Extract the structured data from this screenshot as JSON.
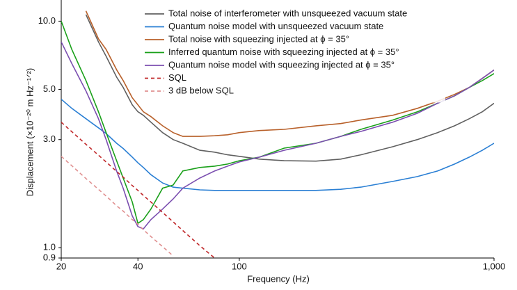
{
  "chart_data": {
    "type": "line",
    "xlabel": "Frequency (Hz)",
    "ylabel": "Displacement (×10⁻²⁰ m Hz⁻¹ᐟ²)",
    "x": [
      20,
      22,
      25,
      28,
      30,
      33,
      35,
      38,
      40,
      42,
      45,
      50,
      55,
      60,
      70,
      80,
      90,
      100,
      120,
      150,
      200,
      250,
      300,
      400,
      500,
      600,
      700,
      800,
      900,
      1000
    ],
    "series": [
      {
        "name": "Total noise of interferometer with unsqueezed vacuum state",
        "color": "#606060",
        "values": [
          null,
          null,
          10.7,
          8.1,
          7.0,
          5.66,
          5.1,
          4.27,
          3.98,
          3.84,
          3.58,
          3.22,
          3.0,
          2.89,
          2.69,
          2.64,
          2.57,
          2.53,
          2.46,
          2.42,
          2.41,
          2.46,
          2.57,
          2.79,
          3.0,
          3.22,
          3.45,
          3.71,
          3.98,
          4.34
        ]
      },
      {
        "name": "Quantum noise model with unsqueezed vacuum state",
        "color": "#2a7fd4",
        "values": [
          4.52,
          4.12,
          3.71,
          3.38,
          3.19,
          2.89,
          2.74,
          2.51,
          2.37,
          2.26,
          2.1,
          1.93,
          1.85,
          1.83,
          1.8,
          1.79,
          1.79,
          1.79,
          1.79,
          1.79,
          1.79,
          1.81,
          1.85,
          1.96,
          2.06,
          2.18,
          2.34,
          2.51,
          2.69,
          2.89
        ]
      },
      {
        "name": "Total noise with squeezing injected at ϕ = 35°",
        "color": "#b8602a",
        "values": [
          null,
          null,
          11.1,
          8.36,
          7.5,
          6.1,
          5.47,
          4.59,
          4.27,
          3.98,
          3.79,
          3.45,
          3.22,
          3.1,
          3.1,
          3.12,
          3.15,
          3.22,
          3.29,
          3.33,
          3.45,
          3.53,
          3.66,
          3.84,
          4.12,
          4.43,
          4.75,
          5.1,
          5.59,
          6.09
        ]
      },
      {
        "name": "Inferred quantum noise with squeezing injected at ϕ = 35°",
        "color": "#1aa01a",
        "values": [
          10.0,
          7.5,
          5.47,
          3.98,
          3.22,
          2.42,
          2.03,
          1.59,
          1.28,
          1.33,
          1.48,
          1.83,
          1.89,
          2.18,
          2.26,
          2.29,
          2.34,
          2.42,
          2.51,
          2.75,
          2.89,
          3.1,
          3.33,
          3.66,
          3.98,
          4.34,
          4.68,
          5.1,
          5.47,
          5.87
        ]
      },
      {
        "name": "Quantum noise model with squeezing injected at ϕ = 35°",
        "color": "#7b4fb0",
        "values": [
          8.1,
          6.5,
          4.92,
          3.71,
          3.0,
          2.18,
          1.83,
          1.38,
          1.24,
          1.21,
          1.33,
          1.48,
          1.64,
          1.83,
          2.03,
          2.18,
          2.29,
          2.39,
          2.51,
          2.69,
          2.89,
          3.1,
          3.26,
          3.58,
          3.92,
          4.34,
          4.68,
          5.1,
          5.59,
          6.09
        ]
      },
      {
        "name": "SQL",
        "color": "#c0282a",
        "dash": "5,4",
        "values": [
          3.58,
          3.25,
          2.86,
          2.56,
          2.39,
          2.17,
          2.05,
          1.88,
          1.79,
          1.7,
          1.59,
          1.43,
          1.3,
          1.19,
          1.02,
          0.9,
          null,
          null,
          null,
          null,
          null,
          null,
          null,
          null,
          null,
          null,
          null,
          null,
          null,
          null
        ]
      },
      {
        "name": "3 dB below SQL",
        "color": "#e09090",
        "dash": "5,4",
        "values": [
          2.53,
          2.3,
          2.02,
          1.81,
          1.69,
          1.53,
          1.45,
          1.33,
          1.27,
          1.2,
          1.12,
          1.01,
          0.92,
          null,
          null,
          null,
          null,
          null,
          null,
          null,
          null,
          null,
          null,
          null,
          null,
          null,
          null,
          null,
          null,
          null
        ]
      }
    ],
    "log_x": true,
    "log_y": true,
    "xlim": [
      20,
      1000
    ],
    "ylim": [
      0.9,
      12.4
    ],
    "xticks": [
      20,
      40,
      100,
      {
        "value": 1000,
        "label": "1,000"
      }
    ],
    "yticks": [
      0.9,
      {
        "value": 1,
        "label": "1.0"
      },
      {
        "value": 3,
        "label": "3.0"
      },
      {
        "value": 5,
        "label": "5.0"
      },
      {
        "value": 10,
        "label": "10.0"
      }
    ],
    "grid": false,
    "legend_position": "upper center"
  }
}
